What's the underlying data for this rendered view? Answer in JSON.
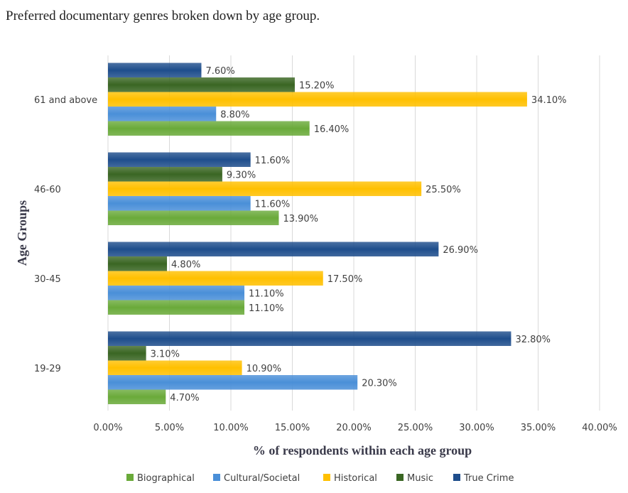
{
  "title": "Preferred documentary genres broken down by age group.",
  "chart_data": {
    "type": "bar",
    "orientation": "horizontal",
    "categories": [
      "19-29",
      "30-45",
      "46-60",
      "61 and above"
    ],
    "series": [
      {
        "name": "Biographical",
        "color": "#6aaa3a",
        "values": [
          4.7,
          11.1,
          13.9,
          16.4
        ]
      },
      {
        "name": "Cultural/Societal",
        "color": "#4a8fd8",
        "values": [
          20.3,
          11.1,
          11.6,
          8.8
        ]
      },
      {
        "name": "Historical",
        "color": "#ffc000",
        "values": [
          10.9,
          17.5,
          25.5,
          34.1
        ]
      },
      {
        "name": "Music",
        "color": "#3a6623",
        "values": [
          3.1,
          4.8,
          9.3,
          15.2
        ]
      },
      {
        "name": "True Crime",
        "color": "#1f4e8c",
        "values": [
          32.8,
          26.9,
          11.6,
          7.6
        ]
      }
    ],
    "data_labels": [
      [
        "4.70%",
        "20.30%",
        "10.90%",
        "3.10%",
        "32.80%"
      ],
      [
        "11.10%",
        "11.10%",
        "17.50%",
        "4.80%",
        "26.90%"
      ],
      [
        "13.90%",
        "11.60%",
        "25.50%",
        "9.30%",
        "11.60%"
      ],
      [
        "16.40%",
        "8.80%",
        "34.10%",
        "15.20%",
        "7.60%"
      ]
    ],
    "xlim": [
      0,
      40
    ],
    "xticks": [
      0,
      5,
      10,
      15,
      20,
      25,
      30,
      35,
      40
    ],
    "xtick_labels": [
      "0.00%",
      "5.00%",
      "10.00%",
      "15.00%",
      "20.00%",
      "25.00%",
      "30.00%",
      "35.00%",
      "40.00%"
    ],
    "xlabel": "% of respondents within each age group",
    "ylabel": "Age Groups",
    "grid": "vertical",
    "legend_position": "bottom"
  }
}
